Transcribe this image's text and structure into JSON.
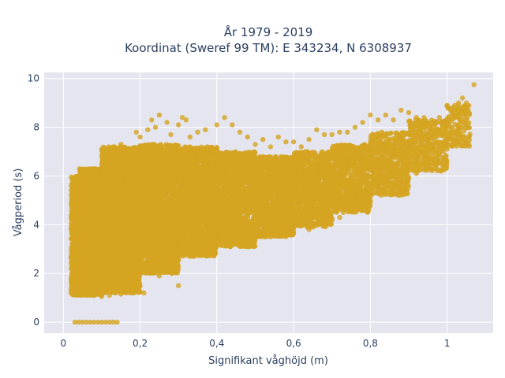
{
  "chart_data": {
    "type": "scatter",
    "title": "År 1979 - 2019",
    "subtitle": "Koordinat (Sweref 99 TM): E 343234, N 6308937",
    "xlabel": "Signifikant våghöjd (m)",
    "ylabel": "Vågperiod (s)",
    "xlim": [
      -0.05,
      1.12
    ],
    "ylim": [
      -0.45,
      10.25
    ],
    "xticks": [
      0,
      0.2,
      0.4,
      0.6,
      0.8,
      1
    ],
    "xtick_labels": [
      "0",
      "0,2",
      "0,4",
      "0,6",
      "0,8",
      "1"
    ],
    "yticks": [
      0,
      2,
      4,
      6,
      8,
      10
    ],
    "ytick_labels": [
      "0",
      "2",
      "4",
      "6",
      "8",
      "10"
    ],
    "grid": true,
    "colors": {
      "marker": "#d4a421",
      "plot_bg": "#e5e5f0",
      "grid": "#ffffff",
      "text": "#2a3f5f"
    },
    "series": [
      {
        "points": [
          [
            0.03,
            0
          ],
          [
            0.04,
            0
          ],
          [
            0.05,
            0
          ],
          [
            0.06,
            0
          ],
          [
            0.07,
            0
          ],
          [
            0.08,
            0
          ],
          [
            0.09,
            0
          ],
          [
            0.1,
            0
          ],
          [
            0.11,
            0
          ],
          [
            0.12,
            0
          ],
          [
            0.13,
            0
          ],
          [
            0.14,
            0
          ],
          [
            0.02,
            1.2
          ],
          [
            0.03,
            1.5
          ],
          [
            0.03,
            2.5
          ],
          [
            0.03,
            3.5
          ],
          [
            0.03,
            4.5
          ],
          [
            0.03,
            5.5
          ],
          [
            0.04,
            6.0
          ],
          [
            0.05,
            5.8
          ],
          [
            0.05,
            1.3
          ],
          [
            0.06,
            1.1
          ],
          [
            0.08,
            1.1
          ],
          [
            0.1,
            1.05
          ],
          [
            0.12,
            1.1
          ],
          [
            0.15,
            1.15
          ],
          [
            0.18,
            1.2
          ],
          [
            0.2,
            1.25
          ],
          [
            0.21,
            1.2
          ],
          [
            0.1,
            6.5
          ],
          [
            0.12,
            6.4
          ],
          [
            0.15,
            7.3
          ],
          [
            0.17,
            7.0
          ],
          [
            0.19,
            7.8
          ],
          [
            0.2,
            7.6
          ],
          [
            0.22,
            7.9
          ],
          [
            0.23,
            8.3
          ],
          [
            0.24,
            8.0
          ],
          [
            0.25,
            8.5
          ],
          [
            0.27,
            8.2
          ],
          [
            0.28,
            7.7
          ],
          [
            0.3,
            8.1
          ],
          [
            0.31,
            8.4
          ],
          [
            0.32,
            8.3
          ],
          [
            0.33,
            7.6
          ],
          [
            0.35,
            7.8
          ],
          [
            0.37,
            7.9
          ],
          [
            0.4,
            8.1
          ],
          [
            0.42,
            8.4
          ],
          [
            0.44,
            8.1
          ],
          [
            0.46,
            7.8
          ],
          [
            0.48,
            7.6
          ],
          [
            0.5,
            7.3
          ],
          [
            0.52,
            7.5
          ],
          [
            0.54,
            7.2
          ],
          [
            0.56,
            7.6
          ],
          [
            0.58,
            7.4
          ],
          [
            0.6,
            7.4
          ],
          [
            0.62,
            7.2
          ],
          [
            0.64,
            7.5
          ],
          [
            0.66,
            7.9
          ],
          [
            0.68,
            7.7
          ],
          [
            0.7,
            7.7
          ],
          [
            0.72,
            7.8
          ],
          [
            0.74,
            7.8
          ],
          [
            0.76,
            8.0
          ],
          [
            0.78,
            8.2
          ],
          [
            0.8,
            8.5
          ],
          [
            0.82,
            8.3
          ],
          [
            0.84,
            8.5
          ],
          [
            0.86,
            8.3
          ],
          [
            0.88,
            8.7
          ],
          [
            0.9,
            8.6
          ],
          [
            0.92,
            8.4
          ],
          [
            0.94,
            8.4
          ],
          [
            0.96,
            8.2
          ],
          [
            0.98,
            8.4
          ],
          [
            1.0,
            8.9
          ],
          [
            1.02,
            8.9
          ],
          [
            1.03,
            9.0
          ],
          [
            1.04,
            9.2
          ],
          [
            1.05,
            9.0
          ],
          [
            1.07,
            9.75
          ],
          [
            0.19,
            1.9
          ],
          [
            0.25,
            1.9
          ],
          [
            0.3,
            1.5
          ],
          [
            0.34,
            2.7
          ],
          [
            0.38,
            3.0
          ],
          [
            0.4,
            3.1
          ],
          [
            0.45,
            3.2
          ],
          [
            0.5,
            3.4
          ],
          [
            0.54,
            3.5
          ],
          [
            0.58,
            3.6
          ],
          [
            0.6,
            3.7
          ],
          [
            0.64,
            3.8
          ],
          [
            0.65,
            3.9
          ],
          [
            0.7,
            4.2
          ],
          [
            0.72,
            4.3
          ],
          [
            0.74,
            4.6
          ],
          [
            0.78,
            4.8
          ],
          [
            0.8,
            5.0
          ],
          [
            0.84,
            5.3
          ],
          [
            0.87,
            5.5
          ],
          [
            0.9,
            5.9
          ],
          [
            0.92,
            6.1
          ],
          [
            0.95,
            6.4
          ],
          [
            0.97,
            6.6
          ],
          [
            1.0,
            7.1
          ]
        ]
      }
    ],
    "density_bands": [
      {
        "x": [
          0.02,
          0.04
        ],
        "y": [
          1.1,
          6.0
        ],
        "n": 500
      },
      {
        "x": [
          0.04,
          0.1
        ],
        "y": [
          1.1,
          6.3
        ],
        "n": 2000
      },
      {
        "x": [
          0.1,
          0.2
        ],
        "y": [
          1.2,
          7.2
        ],
        "n": 2800
      },
      {
        "x": [
          0.2,
          0.3
        ],
        "y": [
          2.0,
          7.3
        ],
        "n": 2200
      },
      {
        "x": [
          0.3,
          0.4
        ],
        "y": [
          2.7,
          7.2
        ],
        "n": 1800
      },
      {
        "x": [
          0.4,
          0.5
        ],
        "y": [
          3.1,
          7.0
        ],
        "n": 1500
      },
      {
        "x": [
          0.5,
          0.6
        ],
        "y": [
          3.5,
          6.8
        ],
        "n": 1200
      },
      {
        "x": [
          0.6,
          0.7
        ],
        "y": [
          3.9,
          7.0
        ],
        "n": 1000
      },
      {
        "x": [
          0.7,
          0.8
        ],
        "y": [
          4.5,
          7.3
        ],
        "n": 800
      },
      {
        "x": [
          0.8,
          0.9
        ],
        "y": [
          5.2,
          7.8
        ],
        "n": 600
      },
      {
        "x": [
          0.9,
          1.0
        ],
        "y": [
          6.2,
          8.3
        ],
        "n": 400
      },
      {
        "x": [
          1.0,
          1.06
        ],
        "y": [
          7.2,
          8.9
        ],
        "n": 150
      }
    ]
  }
}
